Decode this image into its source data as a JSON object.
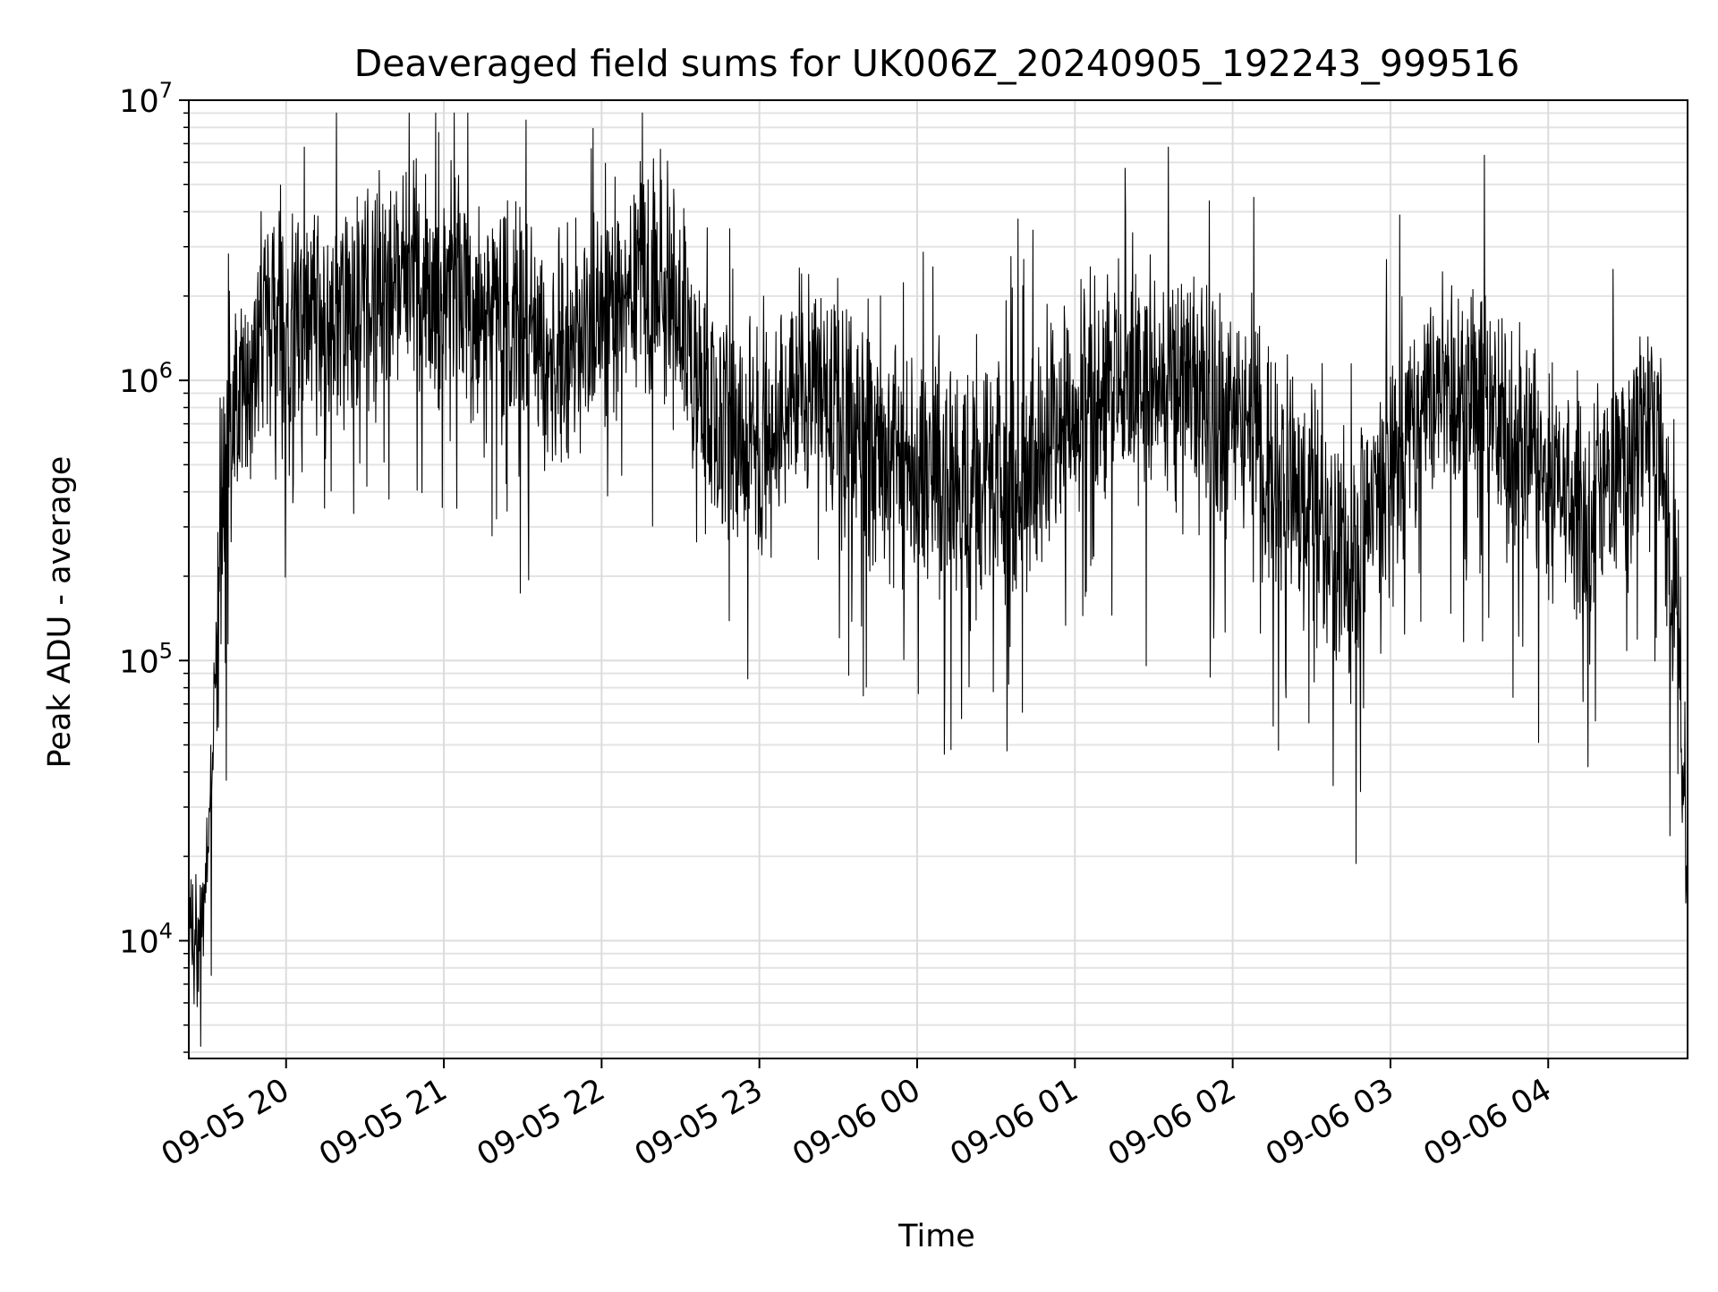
{
  "chart_data": {
    "type": "line",
    "title": "Deaveraged field sums for UK006Z_20240905_192243_999516",
    "xlabel": "Time",
    "ylabel": "Peak ADU - average",
    "yscale": "log",
    "ylim": [
      3800,
      10000000
    ],
    "xlim": [
      "2024-09-05 19:23",
      "2024-09-06 04:53"
    ],
    "grid": true,
    "line_color": "#000000",
    "y_ticks": [
      {
        "value": 10000,
        "base": "10",
        "exp": "4"
      },
      {
        "value": 100000,
        "base": "10",
        "exp": "5"
      },
      {
        "value": 1000000,
        "base": "10",
        "exp": "6"
      },
      {
        "value": 10000000,
        "base": "10",
        "exp": "7"
      }
    ],
    "x_ticks": [
      {
        "value": "2024-09-05 20:00",
        "label": "09-05 20"
      },
      {
        "value": "2024-09-05 21:00",
        "label": "09-05 21"
      },
      {
        "value": "2024-09-05 22:00",
        "label": "09-05 22"
      },
      {
        "value": "2024-09-05 23:00",
        "label": "09-05 23"
      },
      {
        "value": "2024-09-06 00:00",
        "label": "09-06 00"
      },
      {
        "value": "2024-09-06 01:00",
        "label": "09-06 01"
      },
      {
        "value": "2024-09-06 02:00",
        "label": "09-06 02"
      },
      {
        "value": "2024-09-06 03:00",
        "label": "09-06 03"
      },
      {
        "value": "2024-09-06 04:00",
        "label": "09-06 04"
      }
    ],
    "series": [
      {
        "x": [
          "2024-09-05 19:23",
          "2024-09-05 19:26",
          "2024-09-05 19:29",
          "2024-09-05 19:31",
          "2024-09-05 19:33",
          "2024-09-05 19:35",
          "2024-09-05 19:37",
          "2024-09-05 19:40",
          "2024-09-05 19:45",
          "2024-09-05 19:50",
          "2024-09-05 19:55",
          "2024-09-05 20:00",
          "2024-09-05 20:15",
          "2024-09-05 20:30",
          "2024-09-05 20:45",
          "2024-09-05 21:00",
          "2024-09-05 21:15",
          "2024-09-05 21:30",
          "2024-09-05 21:45",
          "2024-09-05 22:00",
          "2024-09-05 22:15",
          "2024-09-05 22:30",
          "2024-09-05 22:45",
          "2024-09-05 23:00",
          "2024-09-05 23:15",
          "2024-09-05 23:30",
          "2024-09-05 23:45",
          "2024-09-06 00:00",
          "2024-09-06 00:15",
          "2024-09-06 00:30",
          "2024-09-06 00:45",
          "2024-09-06 01:00",
          "2024-09-06 01:15",
          "2024-09-06 01:30",
          "2024-09-06 01:45",
          "2024-09-06 02:00",
          "2024-09-06 02:15",
          "2024-09-06 02:30",
          "2024-09-06 02:45",
          "2024-09-06 03:00",
          "2024-09-06 03:15",
          "2024-09-06 03:30",
          "2024-09-06 03:45",
          "2024-09-06 04:00",
          "2024-09-06 04:15",
          "2024-09-06 04:30",
          "2024-09-06 04:40",
          "2024-09-06 04:46",
          "2024-09-06 04:50",
          "2024-09-06 04:53"
        ],
        "y": [
          12000,
          9000,
          15000,
          30000,
          80000,
          250000,
          400000,
          700000,
          1100000,
          1400000,
          1600000,
          1800000,
          1700000,
          2000000,
          2500000,
          2200000,
          1800000,
          1500000,
          1200000,
          1600000,
          2200000,
          1600000,
          800000,
          600000,
          900000,
          700000,
          550000,
          500000,
          450000,
          400000,
          500000,
          900000,
          1100000,
          1000000,
          900000,
          700000,
          500000,
          350000,
          200000,
          500000,
          900000,
          1000000,
          600000,
          450000,
          350000,
          500000,
          700000,
          250000,
          80000,
          12000
        ]
      }
    ]
  }
}
